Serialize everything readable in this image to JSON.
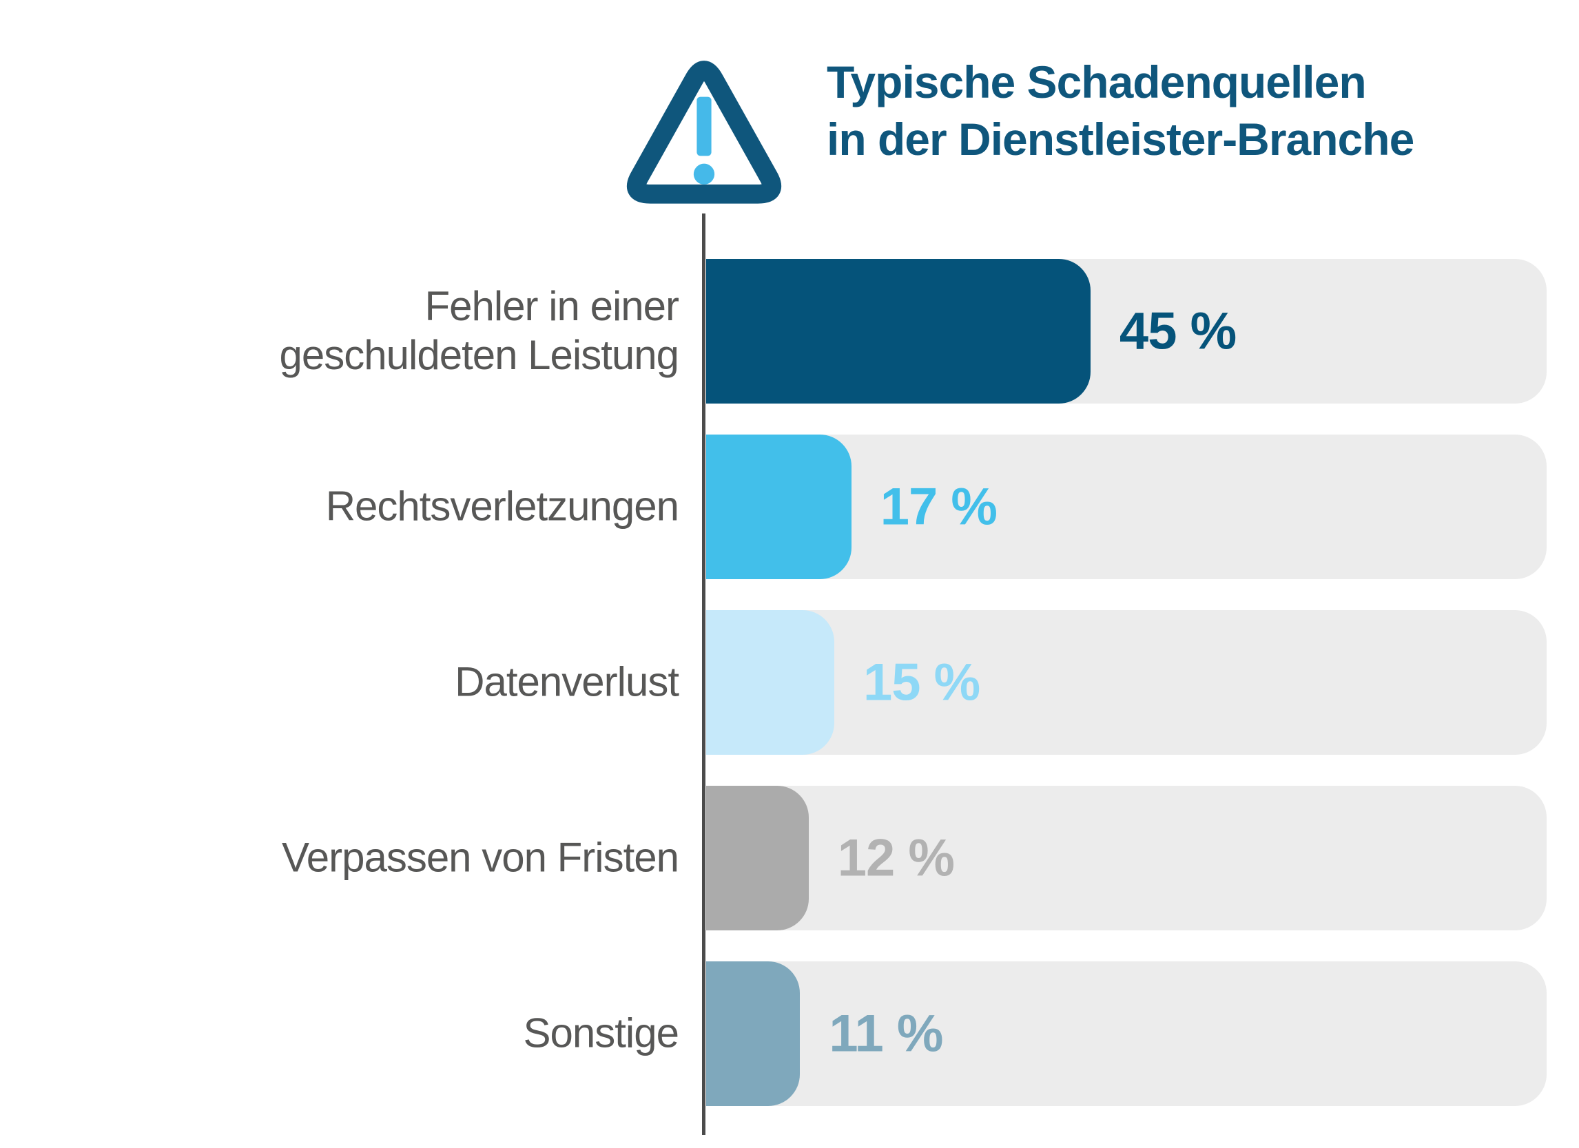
{
  "header": {
    "title_line1": "Typische Schadenquellen",
    "title_line2": "in der Dienstleister-Branche",
    "title_color": "#0f567c",
    "icon": "warning-exclamation-triangle-icon",
    "icon_outline_color": "#0f567c",
    "icon_exclamation_color": "#45b9e9"
  },
  "chart_data": {
    "type": "bar",
    "orientation": "horizontal",
    "title": "Typische Schadenquellen in der Dienstleister-Branche",
    "categories": [
      "Fehler in einer\ngeschuldeten Leistung",
      "Rechtsverletzungen",
      "Datenverlust",
      "Verpassen von Fristen",
      "Sonstige"
    ],
    "values": [
      45,
      17,
      15,
      12,
      11
    ],
    "value_labels": [
      "45 %",
      "17 %",
      "15 %",
      "12 %",
      "11 %"
    ],
    "unit": "%",
    "xlim": [
      0,
      98.4
    ],
    "grid": false,
    "legend": false,
    "bar_colors": [
      "#05537a",
      "#42bfea",
      "#c6e9fa",
      "#ababab",
      "#7fa8bc"
    ],
    "value_label_colors": [
      "#05537a",
      "#42bfea",
      "#8ed8f6",
      "#b2b2b2",
      "#7fa8bc"
    ],
    "track_color": "#ececec",
    "axis_line_color": "#4b4b4b",
    "category_label_color": "#575756"
  }
}
